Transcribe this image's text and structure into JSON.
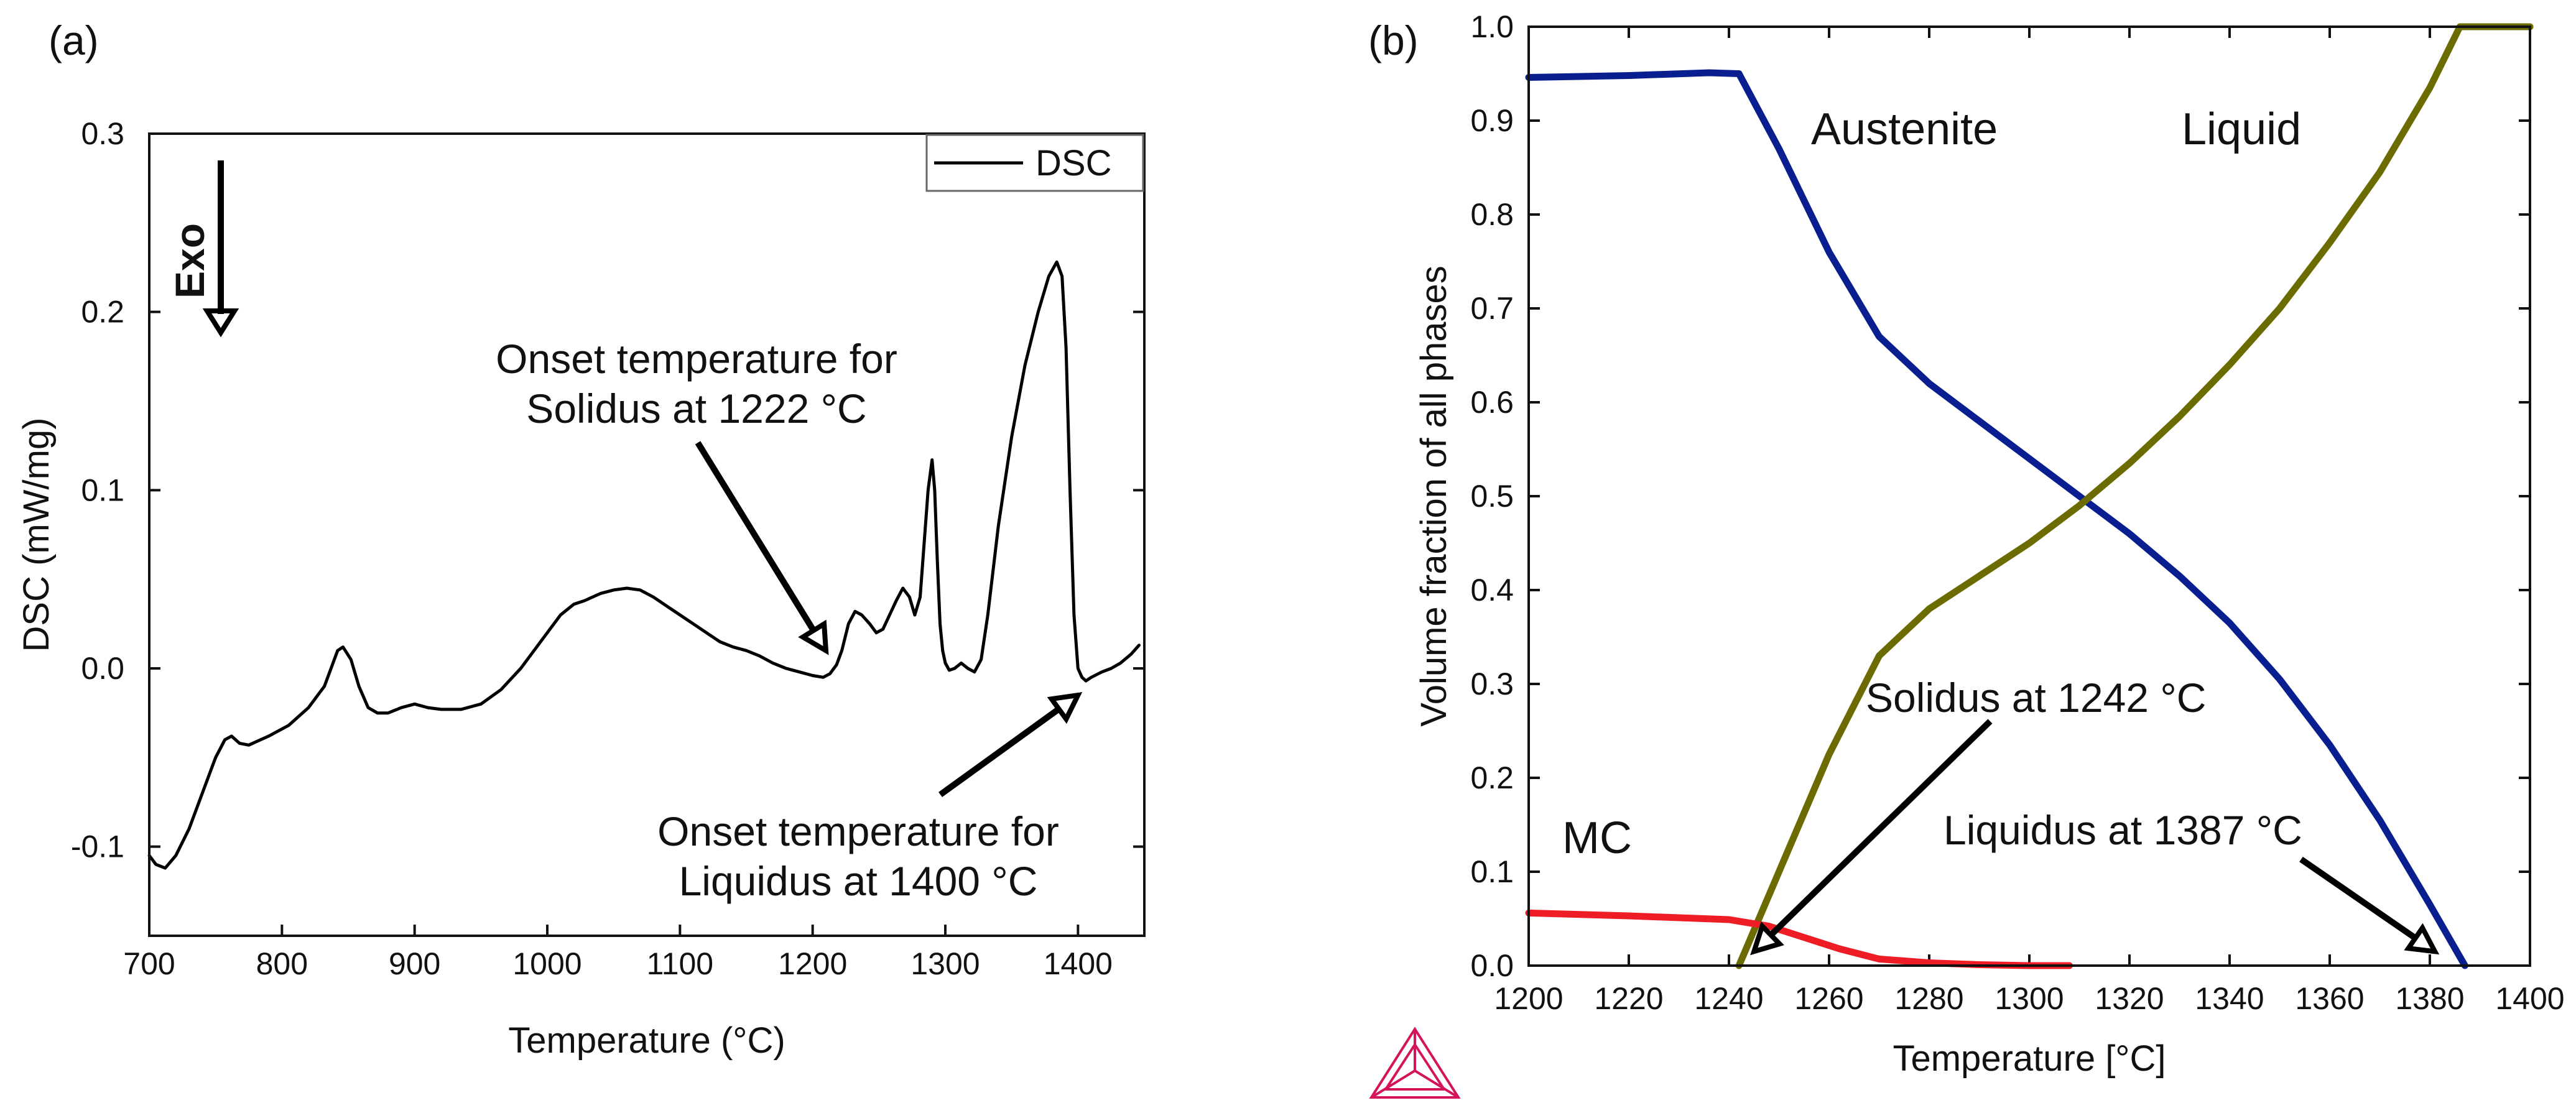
{
  "colors": {
    "axis": "#111111",
    "dsc": "#000000",
    "austenite": "#0a1f8f",
    "liquid": "#6b6b00",
    "mc": "#ee1c25",
    "logo": "#d4145a"
  },
  "chart_data": [
    {
      "type": "line",
      "panel_label": "(a)",
      "title": "",
      "xlabel": "Temperature (°C)",
      "ylabel": "DSC (mW/mg)",
      "xlim": [
        700,
        1450
      ],
      "ylim": [
        -0.15,
        0.3
      ],
      "xticks": [
        700,
        800,
        900,
        1000,
        1100,
        1200,
        1300,
        1400
      ],
      "xtick_labels": [
        "700",
        "800",
        "900",
        "1000",
        "1100",
        "1200",
        "1300",
        "1400"
      ],
      "yticks": [
        -0.1,
        0.0,
        0.1,
        0.2,
        0.3
      ],
      "ytick_labels": [
        "-0.1",
        "0.0",
        "0.1",
        "0.2",
        "0.3"
      ],
      "legend": {
        "position": "top-right",
        "entries": [
          "DSC"
        ]
      },
      "exo_label": "Exo",
      "annotations": [
        {
          "lines": [
            "Onset temperature for",
            "Solidus at 1222 °C"
          ],
          "arrow_to": [
            1210,
            0.01
          ]
        },
        {
          "lines": [
            "Onset temperature for",
            "Liquidus at 1400 °C"
          ],
          "arrow_to": [
            1400,
            -0.015
          ]
        }
      ],
      "series": [
        {
          "name": "DSC",
          "x": [
            700,
            705,
            712,
            720,
            730,
            740,
            750,
            757,
            762,
            768,
            775,
            790,
            805,
            820,
            832,
            838,
            842,
            846,
            852,
            858,
            865,
            872,
            880,
            890,
            900,
            910,
            920,
            935,
            950,
            965,
            980,
            995,
            1010,
            1020,
            1028,
            1040,
            1050,
            1060,
            1070,
            1080,
            1090,
            1100,
            1110,
            1120,
            1130,
            1140,
            1150,
            1160,
            1170,
            1180,
            1190,
            1200,
            1208,
            1213,
            1218,
            1222,
            1227,
            1232,
            1237,
            1243,
            1248,
            1253,
            1258,
            1263,
            1268,
            1273,
            1277,
            1281,
            1284,
            1287,
            1290,
            1292,
            1294,
            1296,
            1298,
            1300,
            1303,
            1307,
            1312,
            1317,
            1322,
            1327,
            1332,
            1340,
            1350,
            1360,
            1370,
            1378,
            1384,
            1388,
            1391,
            1394,
            1397,
            1400,
            1403,
            1406,
            1410,
            1418,
            1425,
            1432,
            1440,
            1446
          ],
          "values": [
            -0.105,
            -0.11,
            -0.112,
            -0.105,
            -0.09,
            -0.07,
            -0.05,
            -0.04,
            -0.038,
            -0.042,
            -0.043,
            -0.038,
            -0.032,
            -0.022,
            -0.01,
            0.002,
            0.01,
            0.012,
            0.005,
            -0.01,
            -0.022,
            -0.025,
            -0.025,
            -0.022,
            -0.02,
            -0.022,
            -0.023,
            -0.023,
            -0.02,
            -0.012,
            0.0,
            0.015,
            0.03,
            0.036,
            0.038,
            0.042,
            0.044,
            0.045,
            0.044,
            0.04,
            0.035,
            0.03,
            0.025,
            0.02,
            0.015,
            0.012,
            0.01,
            0.007,
            0.003,
            0.0,
            -0.002,
            -0.004,
            -0.005,
            -0.003,
            0.002,
            0.01,
            0.025,
            0.032,
            0.03,
            0.025,
            0.02,
            0.022,
            0.03,
            0.038,
            0.045,
            0.04,
            0.03,
            0.04,
            0.07,
            0.1,
            0.117,
            0.1,
            0.06,
            0.025,
            0.01,
            0.003,
            -0.001,
            0.0,
            0.003,
            0.0,
            -0.002,
            0.005,
            0.03,
            0.08,
            0.13,
            0.17,
            0.2,
            0.22,
            0.228,
            0.22,
            0.18,
            0.1,
            0.03,
            0.0,
            -0.005,
            -0.007,
            -0.005,
            -0.002,
            0.0,
            0.003,
            0.008,
            0.013
          ]
        }
      ]
    },
    {
      "type": "line",
      "panel_label": "(b)",
      "title": "",
      "xlabel": "Temperature [°C]",
      "ylabel": "Volume fraction of all phases",
      "xlim": [
        1200,
        1400
      ],
      "ylim": [
        0.0,
        1.0
      ],
      "xticks": [
        1200,
        1220,
        1240,
        1260,
        1280,
        1300,
        1320,
        1340,
        1360,
        1380,
        1400
      ],
      "xtick_labels": [
        "1200",
        "1220",
        "1240",
        "1260",
        "1280",
        "1300",
        "1320",
        "1340",
        "1360",
        "1380",
        "1400"
      ],
      "yticks": [
        0.0,
        0.1,
        0.2,
        0.3,
        0.4,
        0.5,
        0.6,
        0.7,
        0.8,
        0.9,
        1.0
      ],
      "ytick_labels": [
        "0.0",
        "0.1",
        "0.2",
        "0.3",
        "0.4",
        "0.5",
        "0.6",
        "0.7",
        "0.8",
        "0.9",
        "1.0"
      ],
      "phase_labels": [
        "Austenite",
        "Liquid",
        "MC"
      ],
      "annotations": [
        {
          "lines": [
            "Solidus at 1242 °C"
          ],
          "arrow_to": [
            1245,
            0.015
          ]
        },
        {
          "lines": [
            "Liquidus at 1387 °C"
          ],
          "arrow_to": [
            1381,
            0.015
          ]
        }
      ],
      "series": [
        {
          "name": "Austenite",
          "x": [
            1200,
            1220,
            1236,
            1242,
            1250,
            1260,
            1270,
            1280,
            1290,
            1300,
            1310,
            1320,
            1330,
            1340,
            1350,
            1360,
            1370,
            1380,
            1387
          ],
          "values": [
            0.946,
            0.948,
            0.951,
            0.95,
            0.87,
            0.76,
            0.67,
            0.62,
            0.58,
            0.54,
            0.5,
            0.46,
            0.415,
            0.365,
            0.305,
            0.235,
            0.155,
            0.065,
            0.0
          ]
        },
        {
          "name": "Liquid",
          "x": [
            1242,
            1250,
            1260,
            1270,
            1280,
            1290,
            1300,
            1310,
            1320,
            1330,
            1340,
            1350,
            1360,
            1370,
            1380,
            1386,
            1400
          ],
          "values": [
            0.0,
            0.1,
            0.225,
            0.33,
            0.38,
            0.415,
            0.45,
            0.49,
            0.535,
            0.585,
            0.64,
            0.7,
            0.77,
            0.845,
            0.935,
            1.0,
            1.0
          ]
        },
        {
          "name": "MC",
          "x": [
            1200,
            1220,
            1240,
            1248,
            1255,
            1262,
            1270,
            1280,
            1290,
            1300,
            1308
          ],
          "values": [
            0.056,
            0.053,
            0.049,
            0.042,
            0.03,
            0.018,
            0.007,
            0.003,
            0.001,
            0.0,
            0.0
          ]
        }
      ]
    }
  ]
}
